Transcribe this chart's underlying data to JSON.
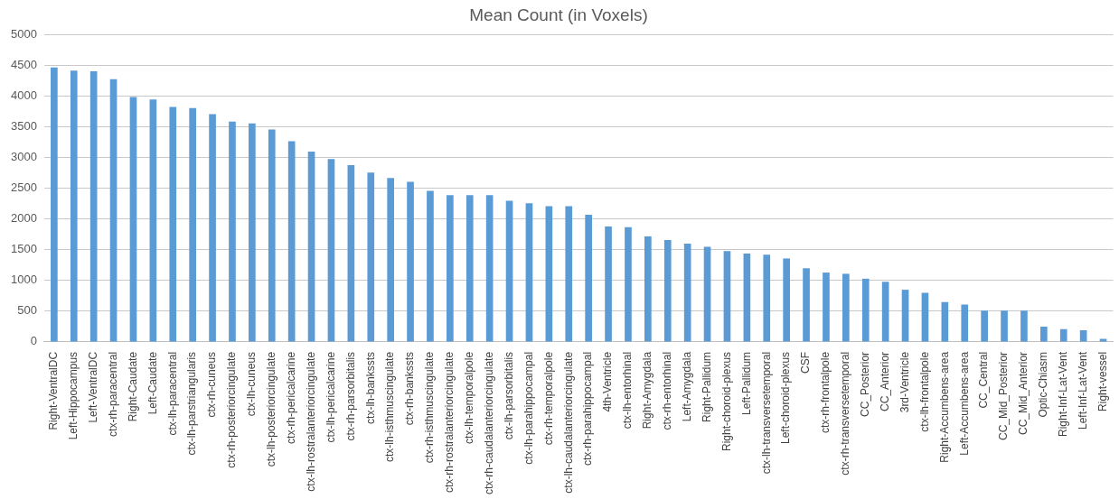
{
  "chart_data": {
    "type": "bar",
    "title": "Mean Count (in Voxels)",
    "categories": [
      "Right-VentralDC",
      "Left-Hippocampus",
      "Left-VentralDC",
      "ctx-rh-paracentral",
      "Right-Caudate",
      "Left-Caudate",
      "ctx-lh-paracentral",
      "ctx-lh-parstriangularis",
      "ctx-rh-cuneus",
      "ctx-rh-posteriorcingulate",
      "ctx-lh-cuneus",
      "ctx-lh-posteriorcingulate",
      "ctx-rh-pericalcarine",
      "ctx-lh-rostralanteriorcingulate",
      "ctx-lh-pericalcarine",
      "ctx-rh-parsorbitalis",
      "ctx-lh-bankssts",
      "ctx-lh-isthmuscingulate",
      "ctx-rh-bankssts",
      "ctx-rh-isthmuscingulate",
      "ctx-rh-rostralanteriorcingulate",
      "ctx-lh-temporalpole",
      "ctx-rh-caudalanteriorcingulate",
      "ctx-lh-parsorbitalis",
      "ctx-lh-parahippocampal",
      "ctx-rh-temporalpole",
      "ctx-lh-caudalanteriorcingulate",
      "ctx-rh-parahippocampal",
      "4th-Ventricle",
      "ctx-lh-entorhinal",
      "Right-Amygdala",
      "ctx-rh-entorhinal",
      "Left-Amygdala",
      "Right-Pallidum",
      "Right-choroid-plexus",
      "Left-Pallidum",
      "ctx-lh-transversetemporal",
      "Left-choroid-plexus",
      "CSF",
      "ctx-rh-frontalpole",
      "ctx-rh-transversetemporal",
      "CC_Posterior",
      "CC_Anterior",
      "3rd-Ventricle",
      "ctx-lh-frontalpole",
      "Right-Accumbens-area",
      "Left-Accumbens-area",
      "CC_Central",
      "CC_Mid_Posterior",
      "CC_Mid_Anterior",
      "Optic-Chiasm",
      "Right-Inf-Lat-Vent",
      "Left-Inf-Lat-Vent",
      "Right-vessel"
    ],
    "values": [
      4470,
      4420,
      4410,
      4280,
      3990,
      3950,
      3830,
      3810,
      3710,
      3590,
      3560,
      3460,
      3270,
      3100,
      2980,
      2880,
      2760,
      2670,
      2610,
      2460,
      2390,
      2390,
      2390,
      2300,
      2260,
      2210,
      2210,
      2070,
      1880,
      1870,
      1720,
      1660,
      1600,
      1550,
      1480,
      1440,
      1420,
      1360,
      1200,
      1130,
      1110,
      1030,
      980,
      850,
      800,
      650,
      610,
      510,
      510,
      510,
      250,
      210,
      190,
      50
    ],
    "color": "#5b9bd5",
    "ylim": [
      0,
      5000
    ],
    "yticks": [
      0,
      500,
      1000,
      1500,
      2000,
      2500,
      3000,
      3500,
      4000,
      4500,
      5000
    ],
    "grid": "y"
  }
}
